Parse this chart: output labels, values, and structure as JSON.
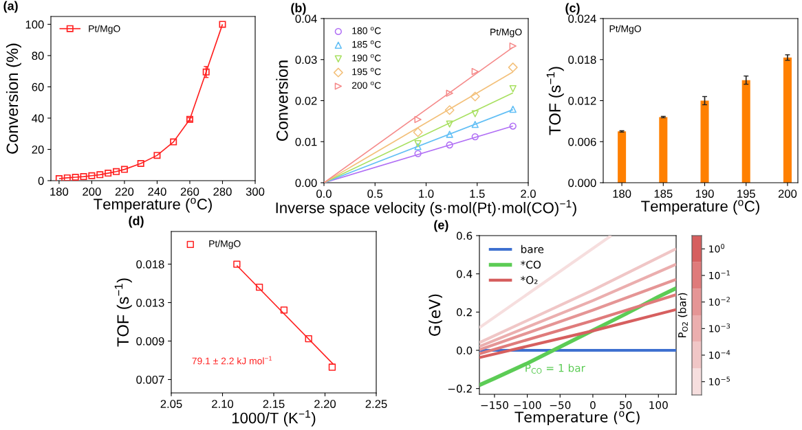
{
  "chart_data": [
    {
      "type": "line",
      "title": "(a)",
      "xlabel": "Temperature ($^{o}$C)",
      "ylabel": "Conversion (%)",
      "x": [
        180,
        185,
        190,
        195,
        200,
        205,
        210,
        215,
        220,
        230,
        240,
        250,
        260,
        270,
        280
      ],
      "series": [
        {
          "name": "Pt/MgO",
          "color": "#ff2020",
          "marker": "square",
          "values": [
            1.3,
            1.8,
            2.2,
            2.6,
            3.2,
            3.8,
            4.8,
            5.8,
            7.2,
            11,
            16.2,
            24.8,
            39.2,
            69.5,
            100
          ],
          "errors": [
            null,
            null,
            null,
            null,
            null,
            null,
            null,
            null,
            null,
            null,
            null,
            null,
            1,
            3.5,
            null
          ]
        }
      ],
      "xlim": [
        175,
        300
      ],
      "xticks": [
        180,
        200,
        220,
        240,
        260,
        280,
        300
      ],
      "ylim": [
        0,
        105
      ],
      "yticks": [
        0,
        20,
        40,
        60,
        80,
        100
      ],
      "legend": "top left"
    },
    {
      "type": "scatter",
      "title": "(b)",
      "xlabel": "Inverse space velocity (s·mol(Pt)·mol(CO)$^{−1}$)",
      "ylabel": "Conversion",
      "annotations": [
        "Pt/MgO"
      ],
      "series": [
        {
          "name": "180 $^{o}$C",
          "color": "#b06ef5",
          "marker": "circle",
          "x": [
            0.92,
            1.23,
            1.48,
            1.85
          ],
          "values": [
            0.0071,
            0.0092,
            0.0112,
            0.0138
          ]
        },
        {
          "name": "185 $^{o}$C",
          "color": "#62bff5",
          "marker": "triangle",
          "x": [
            0.92,
            1.23,
            1.48,
            1.85
          ],
          "values": [
            0.0088,
            0.0118,
            0.0142,
            0.0179
          ]
        },
        {
          "name": "190 $^{o}$C",
          "color": "#a8e060",
          "marker": "triangle_down",
          "x": [
            0.92,
            1.23,
            1.48,
            1.85
          ],
          "values": [
            0.0095,
            0.0143,
            0.0168,
            0.0229
          ]
        },
        {
          "name": "195 $^{o}$C",
          "color": "#f3c07a",
          "marker": "diamond",
          "x": [
            0.92,
            1.23,
            1.48,
            1.85
          ],
          "values": [
            0.0123,
            0.0177,
            0.021,
            0.0281
          ]
        },
        {
          "name": "200 $^{o}$C",
          "color": "#f58a8a",
          "marker": "triangle_right",
          "x": [
            0.92,
            1.23,
            1.48,
            1.85
          ],
          "values": [
            0.0154,
            0.0218,
            0.0271,
            0.0333
          ]
        },
        {
          "type": "line",
          "color": "#b06ef5",
          "x": [
            0,
            1.85
          ],
          "values": [
            0,
            0.0138
          ]
        },
        {
          "type": "line",
          "color": "#62bff5",
          "x": [
            0,
            1.85
          ],
          "values": [
            0,
            0.0178
          ]
        },
        {
          "type": "line",
          "color": "#a8e060",
          "x": [
            0,
            1.85
          ],
          "values": [
            0,
            0.0219
          ]
        },
        {
          "type": "line",
          "color": "#f3c07a",
          "x": [
            0,
            1.85
          ],
          "values": [
            0,
            0.027
          ]
        },
        {
          "type": "line",
          "color": "#f58a8a",
          "x": [
            0,
            1.85
          ],
          "values": [
            0,
            0.033
          ]
        }
      ],
      "xlim": [
        0,
        2
      ],
      "xticks": [
        {
          "value": 0,
          "label": "0.0"
        },
        {
          "value": 0.5,
          "label": "0.5"
        },
        {
          "value": 1,
          "label": "1.0"
        },
        {
          "value": 1.5,
          "label": "1.5"
        },
        {
          "value": 2,
          "label": "2.0"
        }
      ],
      "ylim": [
        0,
        0.04
      ],
      "yticks": [
        {
          "value": 0,
          "label": "0.00"
        },
        {
          "value": 0.01,
          "label": "0.01"
        },
        {
          "value": 0.02,
          "label": "0.02"
        },
        {
          "value": 0.03,
          "label": "0.03"
        },
        {
          "value": 0.04,
          "label": "0.04"
        }
      ],
      "legend": "top left"
    },
    {
      "type": "bar",
      "title": "(c)",
      "xlabel": "Temperature ($^{o}$C)",
      "ylabel": "TOF (s$^{−1}$)",
      "annotations": [
        "Pt/MgO"
      ],
      "categories": [
        "180",
        "185",
        "190",
        "195",
        "200"
      ],
      "values": [
        0.0075,
        0.0096,
        0.012,
        0.015,
        0.0183
      ],
      "errors": [
        0.0001,
        0.0001,
        0.0006,
        0.0006,
        0.0004
      ],
      "color": "#ff8000",
      "ylim": [
        0,
        0.024
      ],
      "yticks": [
        {
          "value": 0,
          "label": "0.000"
        },
        {
          "value": 0.006,
          "label": "0.006"
        },
        {
          "value": 0.012,
          "label": "0.012"
        },
        {
          "value": 0.018,
          "label": "0.018"
        },
        {
          "value": 0.024,
          "label": "0.024"
        }
      ]
    },
    {
      "type": "scatter",
      "title": "(d)",
      "xlabel": "1000/T (K$^{−1}$)",
      "ylabel": "TOF (s$^{−1}$)",
      "log": "y",
      "annotations": [
        "79.1 ± 2.2 kJ mol$^{−1}$"
      ],
      "series": [
        {
          "name": "Pt/MgO",
          "color": "#ff2020",
          "marker": "square",
          "x": [
            2.114,
            2.136,
            2.16,
            2.184,
            2.207
          ],
          "values": [
            0.0183,
            0.015,
            0.0123,
            0.0096,
            0.0075
          ]
        },
        {
          "type": "line",
          "color": "#ff2020",
          "x": [
            2.114,
            2.208
          ],
          "values": [
            0.0181,
            0.0077
          ]
        }
      ],
      "xlim": [
        2.05,
        2.25
      ],
      "xticks": [
        {
          "value": 2.05,
          "label": "2.05"
        },
        {
          "value": 2.1,
          "label": "2.10"
        },
        {
          "value": 2.15,
          "label": "2.15"
        },
        {
          "value": 2.2,
          "label": "2.20"
        },
        {
          "value": 2.25,
          "label": "2.25"
        }
      ],
      "ylim": [
        0.006,
        0.0243
      ],
      "yticks": [
        {
          "value": 0.006738,
          "label": "0.007"
        },
        {
          "value": 0.009404,
          "label": "0.009"
        },
        {
          "value": 0.013124,
          "label": "0.013"
        },
        {
          "value": 0.018316,
          "label": "0.018"
        }
      ],
      "legend": "top left"
    },
    {
      "type": "line",
      "title": "(e)",
      "xlabel": "Temperature ($^{o}$C)",
      "ylabel": "G(eV)",
      "clabel": "P$_{O2}$ (bar)",
      "annotations": [
        "P$_{CO}$ = 1 bar",
        "10$^{0}$",
        "10$^{−1}$",
        "10$^{−2}$",
        "10$^{−3}$",
        "10$^{−4}$",
        "10$^{−5}$"
      ],
      "series": [
        {
          "name": "bare",
          "color": "#3e70d0",
          "x": [
            -173,
            127
          ],
          "values": [
            0,
            0
          ]
        },
        {
          "name": "*CO",
          "color": "#5ccc55",
          "x": [
            -173,
            -150,
            -100,
            -50,
            0,
            50,
            100,
            127
          ],
          "values": [
            -0.182,
            -0.147,
            -0.068,
            0.018,
            0.104,
            0.19,
            0.28,
            0.325
          ]
        },
        {
          "color": "#f6dede",
          "x": [
            -173,
            28
          ],
          "values": [
            0.118,
            0.6
          ]
        },
        {
          "color": "#f0c6c6",
          "x": [
            -173,
            0,
            127
          ],
          "values": [
            0.04,
            0.315,
            0.531
          ]
        },
        {
          "color": "#ebaeae",
          "x": [
            -173,
            0,
            127
          ],
          "values": [
            0.02,
            0.26,
            0.45
          ]
        },
        {
          "color": "#e59595",
          "x": [
            -173,
            0,
            127
          ],
          "values": [
            0.003,
            0.21,
            0.371
          ]
        },
        {
          "color": "#df7b7b",
          "x": [
            -173,
            0,
            127
          ],
          "values": [
            -0.018,
            0.155,
            0.291
          ]
        },
        {
          "name": "*O₂",
          "color": "#d65f5f",
          "x": [
            -173,
            0,
            127
          ],
          "values": [
            -0.038,
            0.102,
            0.213
          ]
        }
      ],
      "xlim": [
        -173,
        127
      ],
      "xticks": [
        {
          "value": -150,
          "label": "−150"
        },
        {
          "value": -100,
          "label": "−100"
        },
        {
          "value": -50,
          "label": "−50"
        },
        0,
        50,
        100
      ],
      "ylim": [
        -0.23,
        0.6
      ],
      "yticks": [
        {
          "value": -0.2,
          "label": "−0.2"
        },
        {
          "value": 0,
          "label": "0.0"
        },
        {
          "value": 0.2,
          "label": "0.2"
        },
        {
          "value": 0.4,
          "label": "0.4"
        },
        {
          "value": 0.6,
          "label": "0.6"
        }
      ],
      "legend": "top left"
    }
  ]
}
